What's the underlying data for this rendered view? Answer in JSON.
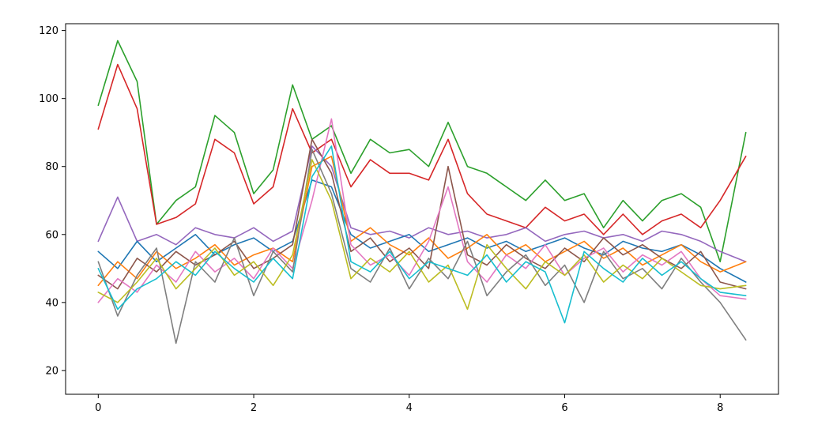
{
  "chart_data": {
    "type": "line",
    "title": "",
    "xlabel": "",
    "ylabel": "",
    "xlim": [
      -0.42,
      8.75
    ],
    "ylim": [
      13,
      122
    ],
    "xticks": [
      {
        "value": 0,
        "label": "0"
      },
      {
        "value": 2,
        "label": "2"
      },
      {
        "value": 4,
        "label": "4"
      },
      {
        "value": 6,
        "label": "6"
      },
      {
        "value": 8,
        "label": "8"
      }
    ],
    "yticks": [
      {
        "value": 20,
        "label": "20"
      },
      {
        "value": 40,
        "label": "40"
      },
      {
        "value": 60,
        "label": "60"
      },
      {
        "value": 80,
        "label": "80"
      },
      {
        "value": 100,
        "label": "100"
      },
      {
        "value": 120,
        "label": "120"
      }
    ],
    "grid": false,
    "legend": "none",
    "x": [
      0,
      0.25,
      0.5,
      0.75,
      1.0,
      1.25,
      1.5,
      1.75,
      2.0,
      2.25,
      2.5,
      2.75,
      3.0,
      3.25,
      3.5,
      3.75,
      4.0,
      4.25,
      4.5,
      4.75,
      5.0,
      5.25,
      5.5,
      5.75,
      6.0,
      6.25,
      6.5,
      6.75,
      7.0,
      7.25,
      7.5,
      7.75,
      8.0,
      8.33
    ],
    "series": [
      {
        "color": "#2ca02c",
        "values": [
          98,
          117,
          105,
          63,
          70,
          74,
          95,
          90,
          72,
          79,
          104,
          88,
          92,
          78,
          88,
          84,
          85,
          80,
          93,
          80,
          78,
          74,
          70,
          76,
          70,
          72,
          62,
          70,
          64,
          70,
          72,
          68,
          52,
          90
        ]
      },
      {
        "color": "#d62728",
        "values": [
          91,
          110,
          97,
          63,
          65,
          69,
          88,
          84,
          69,
          74,
          97,
          84,
          88,
          74,
          82,
          78,
          78,
          76,
          88,
          72,
          66,
          64,
          62,
          68,
          64,
          66,
          60,
          66,
          60,
          64,
          66,
          62,
          70,
          83
        ]
      },
      {
        "color": "#9467bd",
        "values": [
          58,
          71,
          58,
          60,
          57,
          62,
          60,
          59,
          62,
          58,
          61,
          86,
          80,
          62,
          60,
          61,
          59,
          62,
          60,
          61,
          59,
          60,
          62,
          58,
          60,
          61,
          59,
          60,
          58,
          61,
          60,
          58,
          55,
          52
        ]
      },
      {
        "color": "#1f77b4",
        "values": [
          55,
          50,
          58,
          52,
          56,
          60,
          54,
          57,
          59,
          55,
          58,
          76,
          74,
          60,
          56,
          58,
          60,
          55,
          57,
          59,
          56,
          58,
          55,
          57,
          59,
          56,
          54,
          58,
          56,
          55,
          57,
          54,
          50,
          46
        ]
      },
      {
        "color": "#ff7f0e",
        "values": [
          45,
          52,
          47,
          55,
          50,
          53,
          57,
          51,
          54,
          56,
          52,
          80,
          83,
          58,
          62,
          57,
          54,
          59,
          53,
          56,
          60,
          54,
          57,
          52,
          55,
          58,
          53,
          56,
          51,
          54,
          57,
          52,
          49,
          52
        ]
      },
      {
        "color": "#8c564b",
        "values": [
          48,
          44,
          53,
          49,
          55,
          51,
          54,
          58,
          50,
          53,
          57,
          88,
          78,
          55,
          59,
          52,
          56,
          50,
          80,
          54,
          51,
          57,
          53,
          50,
          56,
          52,
          59,
          54,
          57,
          53,
          50,
          55,
          46,
          44
        ]
      },
      {
        "color": "#e377c2",
        "values": [
          40,
          47,
          43,
          51,
          46,
          55,
          49,
          53,
          47,
          56,
          50,
          70,
          94,
          57,
          51,
          54,
          48,
          58,
          74,
          52,
          46,
          54,
          50,
          57,
          48,
          53,
          56,
          49,
          54,
          51,
          55,
          47,
          42,
          41
        ]
      },
      {
        "color": "#7f7f7f",
        "values": [
          52,
          36,
          48,
          56,
          28,
          52,
          46,
          59,
          42,
          55,
          49,
          85,
          72,
          50,
          46,
          56,
          44,
          53,
          47,
          58,
          42,
          49,
          54,
          45,
          51,
          40,
          55,
          47,
          50,
          44,
          53,
          46,
          40,
          29
        ]
      },
      {
        "color": "#bcbd22",
        "values": [
          43,
          40,
          46,
          53,
          44,
          50,
          56,
          48,
          52,
          45,
          54,
          82,
          70,
          47,
          53,
          49,
          55,
          46,
          51,
          38,
          57,
          50,
          44,
          52,
          48,
          54,
          46,
          51,
          47,
          53,
          49,
          45,
          44,
          45
        ]
      },
      {
        "color": "#17becf",
        "values": [
          50,
          38,
          44,
          47,
          52,
          48,
          55,
          50,
          46,
          53,
          47,
          77,
          86,
          52,
          49,
          55,
          47,
          52,
          50,
          48,
          54,
          46,
          52,
          49,
          34,
          55,
          50,
          46,
          53,
          48,
          52,
          47,
          43,
          42
        ]
      }
    ]
  }
}
